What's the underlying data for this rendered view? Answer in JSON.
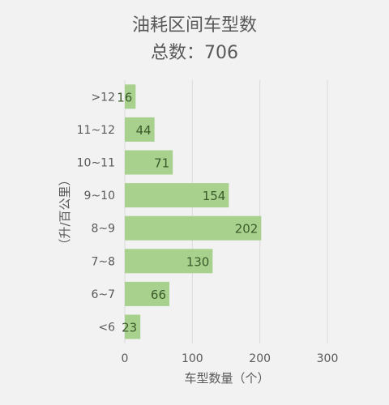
{
  "chart_data": {
    "type": "bar",
    "orientation": "horizontal",
    "title": "油耗区间车型数",
    "subtitle": "总数：706",
    "xlabel": "车型数量（个）",
    "ylabel": "（升/百公里）",
    "categories": [
      ">12",
      "11~12",
      "10~11",
      "9~10",
      "8~9",
      "7~8",
      "6~7",
      "<6"
    ],
    "values": [
      16,
      44,
      71,
      154,
      202,
      130,
      66,
      23
    ],
    "xlim": [
      0,
      300
    ],
    "xticks": [
      0,
      100,
      200,
      300
    ],
    "xtick_labels": [
      "0",
      "100",
      "200",
      "300"
    ],
    "value_labels": [
      "16",
      "44",
      "71",
      "154",
      "202",
      "130",
      "66",
      "23"
    ],
    "grid": "vertical",
    "legend": "none",
    "colors": {
      "bar": "#a9d18e",
      "grid": "#d9d9d9",
      "text": "#595959",
      "value": "#3a5a2a"
    }
  }
}
